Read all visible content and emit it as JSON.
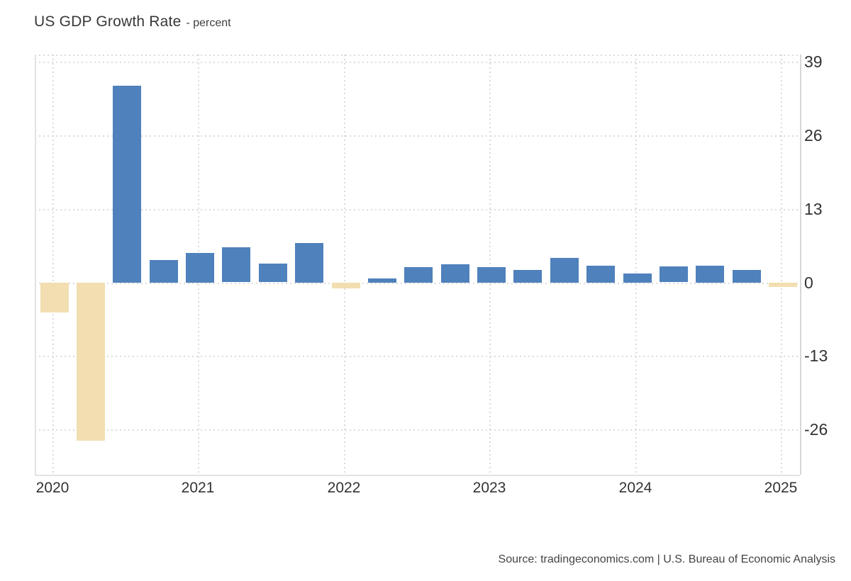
{
  "title": {
    "text": "US GDP Growth Rate",
    "unit_suffix": "- percent"
  },
  "footer": {
    "source_text": "Source: tradingeconomics.com | U.S. Bureau of Economic Analysis"
  },
  "colors": {
    "bar_positive": "#4f81bc",
    "bar_negative": "#f2deb0",
    "gridline": "#dbdbdb",
    "axis_line": "#d7d7d7",
    "tick_label": "#333333",
    "title": "#383838",
    "source_text": "#444444",
    "background": "#ffffff"
  },
  "chart_data": {
    "type": "bar",
    "title": "US GDP Growth Rate",
    "subtitle": "percent",
    "xlabel": "",
    "ylabel": "percent",
    "legend": "none",
    "grid": "dotted",
    "x": [
      "2020 Q1",
      "2020 Q2",
      "2020 Q3",
      "2020 Q4",
      "2021 Q1",
      "2021 Q2",
      "2021 Q3",
      "2021 Q4",
      "2022 Q1",
      "2022 Q2",
      "2022 Q3",
      "2022 Q4",
      "2023 Q1",
      "2023 Q2",
      "2023 Q3",
      "2023 Q4",
      "2024 Q1",
      "2024 Q2",
      "2024 Q3",
      "2024 Q4",
      "2025 Q1"
    ],
    "values": [
      -5.3,
      -28.0,
      34.8,
      4.0,
      5.2,
      6.2,
      3.3,
      7.0,
      -1.0,
      0.3,
      2.7,
      3.2,
      2.7,
      2.2,
      4.4,
      3.0,
      1.6,
      2.8,
      3.0,
      2.2,
      -0.3
    ],
    "x_tick_years": [
      "2020",
      "2021",
      "2022",
      "2023",
      "2024",
      "2025"
    ],
    "yticks": [
      39,
      26,
      13,
      0,
      -13,
      -26
    ],
    "ylim": [
      -34,
      40.3
    ]
  }
}
